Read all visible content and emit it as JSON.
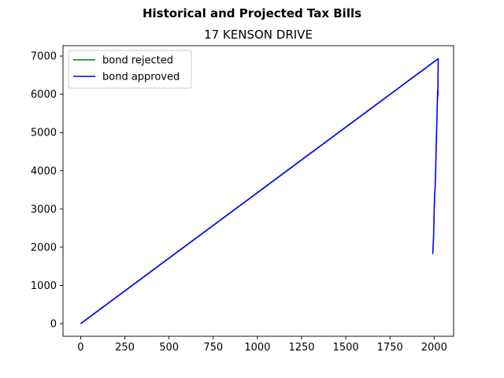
{
  "chart_data": {
    "type": "line",
    "suptitle": "Historical and Projected Tax Bills",
    "title": "17 KENSON DRIVE",
    "xlabel": "",
    "ylabel": "",
    "xlim": [
      -100,
      2110
    ],
    "ylim": [
      -330,
      7270
    ],
    "xticks": [
      0,
      250,
      500,
      750,
      1000,
      1250,
      1500,
      1750,
      2000
    ],
    "yticks": [
      0,
      1000,
      2000,
      3000,
      4000,
      5000,
      6000,
      7000
    ],
    "grid": false,
    "legend_position": "upper left",
    "series": [
      {
        "name": "bond rejected",
        "color": "#008000",
        "x": [
          0,
          2023
        ],
        "y": [
          0,
          6930
        ]
      },
      {
        "name": "bond approved",
        "color": "#0000ff",
        "x": [
          0,
          2023,
          2021,
          2020,
          2017,
          2015,
          2013,
          2011,
          2009,
          2007,
          2005,
          2003,
          2001,
          1999,
          1997,
          1995,
          1993,
          1992
        ],
        "y": [
          0,
          6930,
          5950,
          6100,
          5600,
          5200,
          4900,
          4500,
          4100,
          3800,
          3500,
          3400,
          3100,
          2700,
          2300,
          2100,
          1900,
          1820
        ]
      }
    ]
  }
}
